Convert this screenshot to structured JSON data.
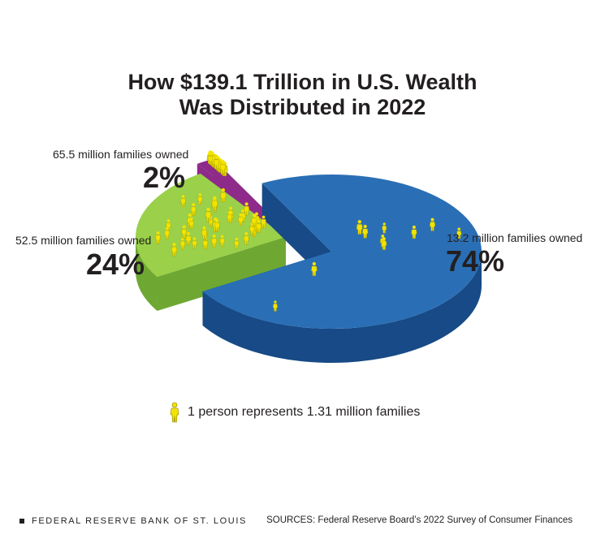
{
  "chart_data": {
    "type": "pie",
    "title": "How $139.1 Trillion in U.S. Wealth\nWas Distributed in 2022",
    "title_lines": [
      "How $139.1 Trillion in U.S. Wealth",
      "Was Distributed in 2022"
    ],
    "slices": [
      {
        "label": "13.2 million families owned",
        "value": 74,
        "display": "74%",
        "color": "#1f5b9e",
        "people": 10
      },
      {
        "label": "52.5 million families owned",
        "value": 24,
        "display": "24%",
        "color": "#8cc63f",
        "people": 40
      },
      {
        "label": "65.5 million families owned",
        "value": 2,
        "display": "2%",
        "color": "#8e2a8a",
        "people": 50
      }
    ],
    "legend": {
      "text": "1 person represents 1.31 million families",
      "icon": "person-icon",
      "icon_color": "#f2e300"
    }
  },
  "footer": {
    "publisher": "FEDERAL RESERVE BANK OF ST. LOUIS",
    "sources": "SOURCES: Federal Reserve Board’s 2022 Survey of Consumer Finances"
  },
  "colors": {
    "blue_top": "#2a6fb5",
    "blue_side": "#174a86",
    "green_top": "#9ad04a",
    "green_side": "#6ea832",
    "purple": "#8e2a8a",
    "person": "#f2e300",
    "text": "#231f20"
  }
}
